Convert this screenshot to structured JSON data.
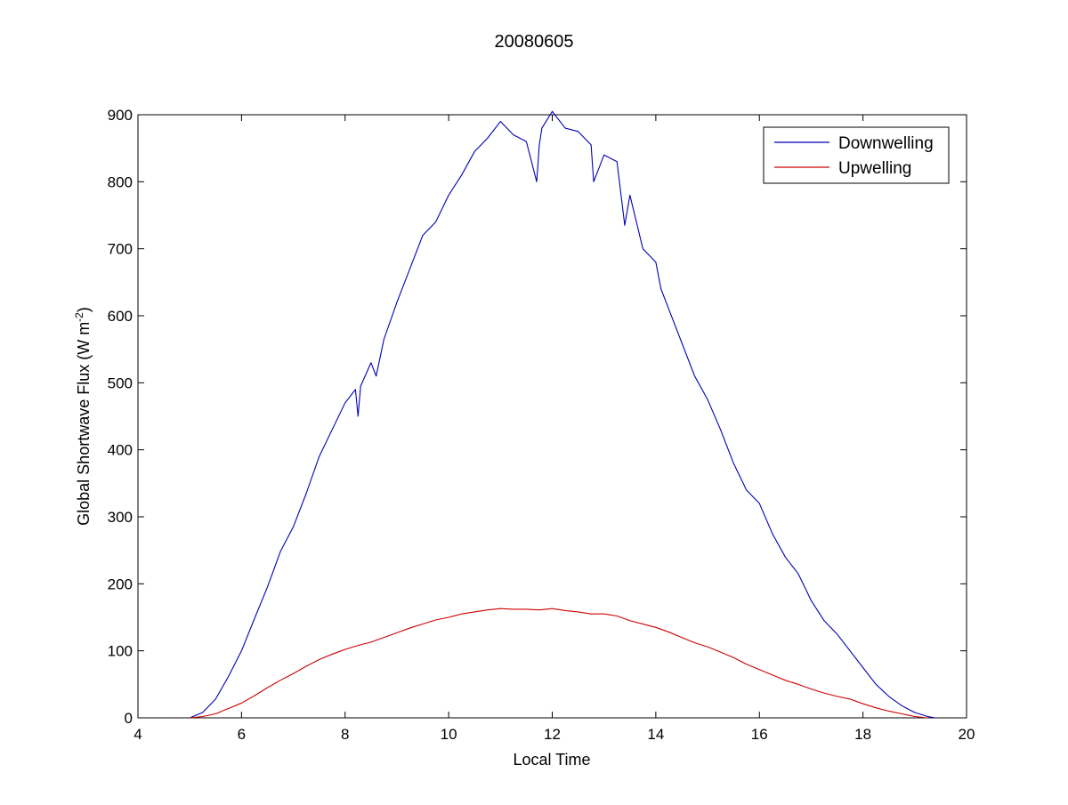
{
  "chart_data": {
    "type": "line",
    "title": "20080605",
    "xlabel": "Local Time",
    "ylabel": "Global Shortwave Flux (W m",
    "ylabel_superscript": "-2",
    "ylabel_close": ")",
    "xlim": [
      4,
      20
    ],
    "ylim": [
      0,
      900
    ],
    "xticks": [
      "4",
      "6",
      "8",
      "10",
      "12",
      "14",
      "16",
      "18",
      "20"
    ],
    "yticks": [
      "0",
      "100",
      "200",
      "300",
      "400",
      "500",
      "600",
      "700",
      "800",
      "900"
    ],
    "grid": false,
    "legend_position": "top-right",
    "series": [
      {
        "name": "Downwelling",
        "color": "#0000b3",
        "x": [
          5.0,
          5.25,
          5.5,
          5.75,
          6.0,
          6.25,
          6.5,
          6.75,
          7.0,
          7.25,
          7.5,
          7.75,
          8.0,
          8.2,
          8.25,
          8.3,
          8.5,
          8.6,
          8.75,
          9.0,
          9.25,
          9.5,
          9.75,
          10.0,
          10.25,
          10.5,
          10.75,
          11.0,
          11.25,
          11.5,
          11.7,
          11.75,
          11.8,
          12.0,
          12.25,
          12.5,
          12.75,
          12.8,
          13.0,
          13.25,
          13.4,
          13.5,
          13.75,
          14.0,
          14.1,
          14.25,
          14.5,
          14.75,
          15.0,
          15.25,
          15.5,
          15.75,
          16.0,
          16.25,
          16.5,
          16.75,
          17.0,
          17.25,
          17.5,
          17.75,
          18.0,
          18.25,
          18.5,
          18.75,
          19.0,
          19.25,
          19.4
        ],
        "values": [
          0,
          8,
          28,
          62,
          100,
          148,
          195,
          248,
          285,
          335,
          390,
          430,
          470,
          490,
          450,
          495,
          530,
          510,
          565,
          620,
          670,
          720,
          740,
          780,
          810,
          845,
          865,
          890,
          870,
          860,
          800,
          855,
          880,
          905,
          880,
          875,
          855,
          800,
          840,
          830,
          735,
          780,
          700,
          680,
          640,
          610,
          560,
          510,
          475,
          430,
          380,
          340,
          320,
          275,
          240,
          215,
          175,
          145,
          125,
          100,
          75,
          50,
          32,
          18,
          8,
          2,
          0
        ]
      },
      {
        "name": "Upwelling",
        "color": "#cc0000",
        "x": [
          5.0,
          5.25,
          5.5,
          5.75,
          6.0,
          6.25,
          6.5,
          6.75,
          7.0,
          7.25,
          7.5,
          7.75,
          8.0,
          8.25,
          8.5,
          8.75,
          9.0,
          9.25,
          9.5,
          9.75,
          10.0,
          10.25,
          10.5,
          10.75,
          11.0,
          11.25,
          11.5,
          11.75,
          12.0,
          12.25,
          12.5,
          12.75,
          13.0,
          13.25,
          13.5,
          13.75,
          14.0,
          14.25,
          14.5,
          14.75,
          15.0,
          15.25,
          15.5,
          15.75,
          16.0,
          16.25,
          16.5,
          16.75,
          17.0,
          17.25,
          17.5,
          17.75,
          18.0,
          18.25,
          18.5,
          18.75,
          19.0,
          19.25
        ],
        "values": [
          0,
          2,
          6,
          14,
          22,
          33,
          45,
          56,
          66,
          77,
          87,
          95,
          102,
          108,
          113,
          120,
          127,
          134,
          140,
          146,
          150,
          155,
          158,
          161,
          163,
          162,
          162,
          161,
          163,
          160,
          158,
          155,
          155,
          152,
          145,
          140,
          135,
          128,
          120,
          112,
          106,
          98,
          90,
          80,
          72,
          64,
          56,
          50,
          43,
          37,
          32,
          28,
          21,
          15,
          10,
          6,
          2,
          0
        ]
      }
    ]
  }
}
